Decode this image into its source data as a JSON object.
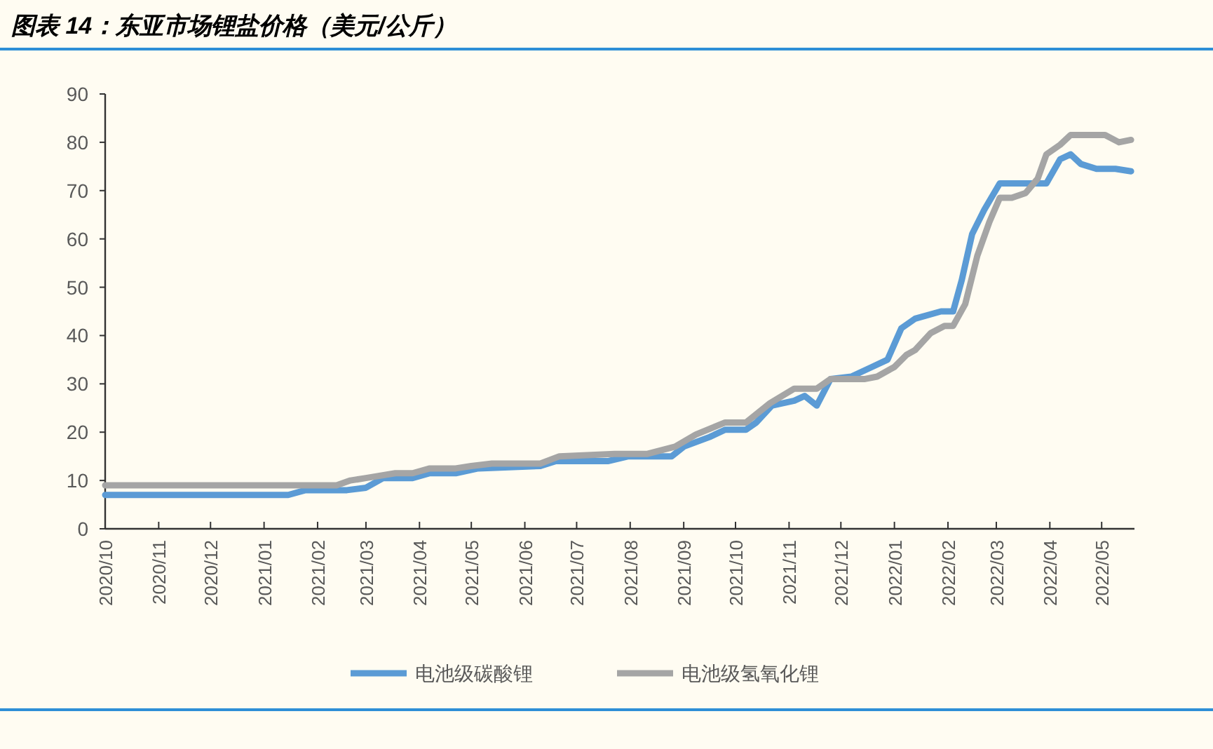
{
  "chart_data": {
    "type": "line",
    "title": "图表 14：东亚市场锂盐价格（美元/公斤）",
    "xlim": [
      "2020-10-01",
      "2022-05-20"
    ],
    "xticks": [
      {
        "value": "2020-10-01",
        "label": "2020/10"
      },
      {
        "value": "2020-11-01",
        "label": "2020/11"
      },
      {
        "value": "2020-12-01",
        "label": "2020/12"
      },
      {
        "value": "2021-01-01",
        "label": "2021/01"
      },
      {
        "value": "2021-02-01",
        "label": "2021/02"
      },
      {
        "value": "2021-03-01",
        "label": "2021/03"
      },
      {
        "value": "2021-04-01",
        "label": "2021/04"
      },
      {
        "value": "2021-05-01",
        "label": "2021/05"
      },
      {
        "value": "2021-06-01",
        "label": "2021/06"
      },
      {
        "value": "2021-07-01",
        "label": "2021/07"
      },
      {
        "value": "2021-08-01",
        "label": "2021/08"
      },
      {
        "value": "2021-09-01",
        "label": "2021/09"
      },
      {
        "value": "2021-10-01",
        "label": "2021/10"
      },
      {
        "value": "2021-11-01",
        "label": "2021/11"
      },
      {
        "value": "2021-12-01",
        "label": "2021/12"
      },
      {
        "value": "2022-01-01",
        "label": "2022/01"
      },
      {
        "value": "2022-02-01",
        "label": "2022/02"
      },
      {
        "value": "2022-03-01",
        "label": "2022/03"
      },
      {
        "value": "2022-04-01",
        "label": "2022/04"
      },
      {
        "value": "2022-05-01",
        "label": "2022/05"
      }
    ],
    "ylim": [
      0,
      90
    ],
    "yticks": [
      0,
      10,
      20,
      30,
      40,
      50,
      60,
      70,
      80,
      90
    ],
    "legend": "bottom",
    "line_style": "solid",
    "series": [
      {
        "name": "电池级碳酸锂",
        "color": "#5b9bd5",
        "x": [
          "2020-10-01",
          "2021-01-15",
          "2021-01-25",
          "2021-02-18",
          "2021-03-01",
          "2021-03-11",
          "2021-03-28",
          "2021-04-07",
          "2021-04-22",
          "2021-05-05",
          "2021-06-10",
          "2021-06-19",
          "2021-07-19",
          "2021-07-31",
          "2021-08-25",
          "2021-09-01",
          "2021-09-16",
          "2021-09-25",
          "2021-10-07",
          "2021-10-13",
          "2021-10-22",
          "2021-11-04",
          "2021-11-10",
          "2021-11-17",
          "2021-11-25",
          "2021-12-07",
          "2021-12-19",
          "2021-12-28",
          "2022-01-05",
          "2022-01-13",
          "2022-01-28",
          "2022-02-04",
          "2022-02-09",
          "2022-02-15",
          "2022-02-22",
          "2022-03-03",
          "2022-03-30",
          "2022-04-07",
          "2022-04-13",
          "2022-04-19",
          "2022-04-28",
          "2022-05-09",
          "2022-05-18"
        ],
        "values": [
          7,
          7,
          8,
          8,
          8.5,
          10.5,
          10.5,
          11.5,
          11.5,
          12.5,
          13,
          14,
          14,
          15,
          15,
          17,
          19,
          20.5,
          20.5,
          22,
          25.5,
          26.5,
          27.5,
          25.5,
          31,
          31.5,
          33.5,
          35,
          41.5,
          43.5,
          45,
          45,
          51.5,
          61,
          66,
          71.5,
          71.5,
          76.5,
          77.5,
          75.5,
          74.5,
          74.5,
          74
        ]
      },
      {
        "name": "电池级氢氧化锂",
        "color": "#a5a5a5",
        "x": [
          "2020-10-01",
          "2021-02-12",
          "2021-02-20",
          "2021-03-01",
          "2021-03-18",
          "2021-03-28",
          "2021-04-07",
          "2021-04-22",
          "2021-05-01",
          "2021-05-13",
          "2021-06-10",
          "2021-06-21",
          "2021-07-23",
          "2021-08-11",
          "2021-08-27",
          "2021-09-08",
          "2021-09-25",
          "2021-10-07",
          "2021-10-21",
          "2021-11-04",
          "2021-11-17",
          "2021-11-25",
          "2021-12-15",
          "2021-12-22",
          "2022-01-01",
          "2022-01-08",
          "2022-01-13",
          "2022-01-22",
          "2022-01-30",
          "2022-02-04",
          "2022-02-11",
          "2022-02-18",
          "2022-02-25",
          "2022-03-03",
          "2022-03-10",
          "2022-03-18",
          "2022-03-25",
          "2022-03-30",
          "2022-04-07",
          "2022-04-13",
          "2022-05-03",
          "2022-05-11",
          "2022-05-18"
        ],
        "values": [
          9,
          9,
          10,
          10.5,
          11.5,
          11.5,
          12.5,
          12.5,
          13,
          13.5,
          13.5,
          15,
          15.5,
          15.5,
          17,
          19.5,
          22,
          22,
          26,
          29,
          29,
          31,
          31,
          31.5,
          33.5,
          36,
          37,
          40.5,
          42,
          42,
          46.5,
          56.5,
          63.5,
          68.5,
          68.5,
          69.5,
          72.5,
          77.5,
          79.5,
          81.5,
          81.5,
          80,
          80.5
        ]
      }
    ]
  }
}
